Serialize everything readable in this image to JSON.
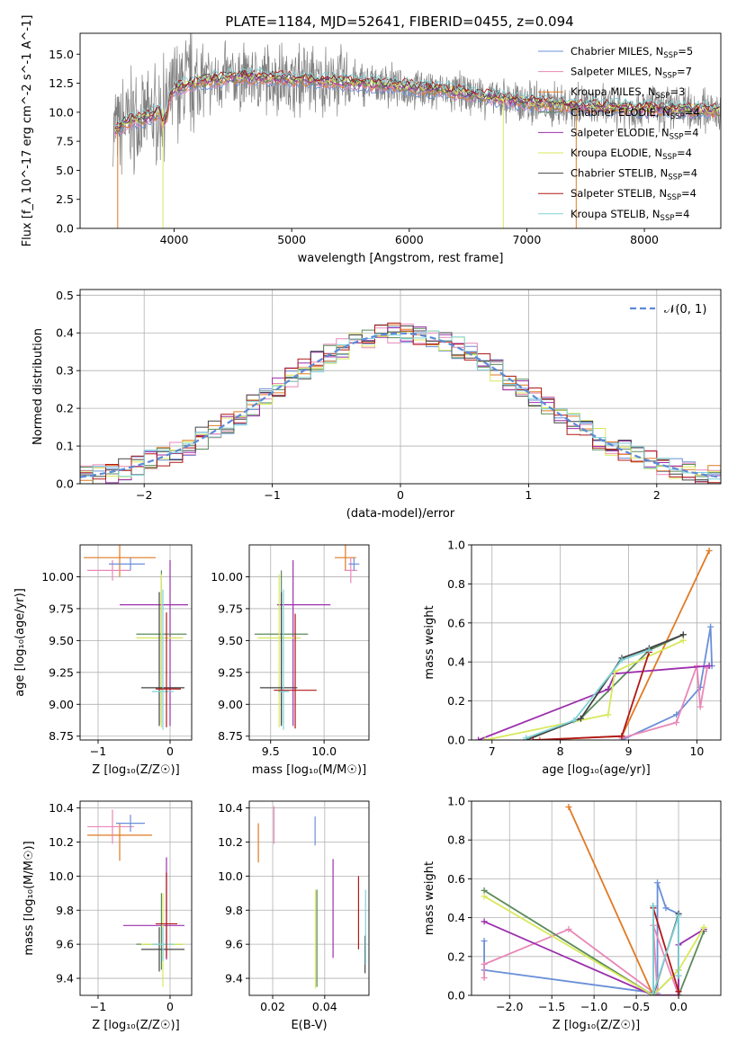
{
  "figure": {
    "title": "PLATE=1184, MJD=52641, FIBERID=0455, z=0.094"
  },
  "colors": {
    "Chabrier MILES": "#6a8fd8",
    "Salpeter MILES": "#e887b8",
    "Kroupa MILES": "#e07a22",
    "Chabrier ELODIE": "#5a8a5a",
    "Salpeter ELODIE": "#9c2fad",
    "Kroupa ELODIE": "#d8e85a",
    "Chabrier STELIB": "#444444",
    "Salpeter STELIB": "#b01818",
    "Kroupa STELIB": "#7fd3d8",
    "gaussian": "#5b8ad8"
  },
  "chart_data": [
    {
      "id": "spectrum",
      "type": "line",
      "xlabel": "wavelength [Angstrom, rest frame]",
      "ylabel": "Flux [f_λ 10^-17 erg cm^-2 s^-1 A^-1]",
      "xlim": [
        3200,
        8650
      ],
      "ylim": [
        0,
        16.8
      ],
      "xticks": [
        "4000",
        "5000",
        "6000",
        "7000",
        "8000"
      ],
      "yticks": [
        "0.0",
        "2.5",
        "5.0",
        "7.5",
        "10.0",
        "12.5",
        "15.0"
      ],
      "legend_position": "top-right",
      "legend": [
        {
          "name": "Chabrier MILES",
          "nssp": "5"
        },
        {
          "name": "Salpeter MILES",
          "nssp": "7"
        },
        {
          "name": "Kroupa MILES",
          "nssp": "3"
        },
        {
          "name": "Chabrier ELODIE",
          "nssp": "4"
        },
        {
          "name": "Salpeter ELODIE",
          "nssp": "4"
        },
        {
          "name": "Kroupa ELODIE",
          "nssp": "4"
        },
        {
          "name": "Chabrier STELIB",
          "nssp": "4"
        },
        {
          "name": "Salpeter STELIB",
          "nssp": "4"
        },
        {
          "name": "Kroupa STELIB",
          "nssp": "4"
        }
      ],
      "continuum": [
        [
          3500,
          8.5
        ],
        [
          3600,
          9.2
        ],
        [
          3800,
          9.6
        ],
        [
          3900,
          10.2
        ],
        [
          4000,
          12.0
        ],
        [
          4200,
          12.6
        ],
        [
          4500,
          13.0
        ],
        [
          4800,
          13.0
        ],
        [
          5000,
          12.8
        ],
        [
          5500,
          12.6
        ],
        [
          6000,
          12.2
        ],
        [
          6500,
          11.6
        ],
        [
          7000,
          10.8
        ],
        [
          7500,
          10.5
        ],
        [
          8000,
          10.3
        ],
        [
          8650,
          10.1
        ]
      ]
    },
    {
      "id": "residuals",
      "type": "line",
      "xlabel": "(data-model)/error",
      "ylabel": "Normed distribution",
      "xlim": [
        -2.5,
        2.5
      ],
      "ylim": [
        0,
        0.515
      ],
      "xticks": [
        "−2",
        "−1",
        "0",
        "1",
        "2"
      ],
      "yticks": [
        "0.0",
        "0.1",
        "0.2",
        "0.3",
        "0.4",
        "0.5"
      ],
      "legend_label": "𝒩(0, 1)",
      "legend_position": "top-right",
      "gaussian_mean": 0,
      "gaussian_sigma": 1,
      "bin_width": 0.1
    },
    {
      "id": "age_vs_Z",
      "type": "scatter",
      "xlabel": "Z [log₁₀(Z/Z☉)]",
      "ylabel": "age  [log₁₀(age/yr)]",
      "xlim": [
        -1.25,
        0.3
      ],
      "ylim": [
        8.72,
        10.25
      ],
      "xticks": [
        "−1",
        "0"
      ],
      "yticks": [
        "8.75",
        "9.00",
        "9.25",
        "9.50",
        "9.75",
        "10.00"
      ],
      "points": [
        {
          "series": "Kroupa MILES",
          "x": -0.7,
          "y": 10.15,
          "xerr": [
            0.5,
            0.5
          ],
          "yerr": [
            0.15,
            0.15
          ]
        },
        {
          "series": "Salpeter MILES",
          "x": -0.8,
          "y": 10.05,
          "xerr": [
            0.35,
            0.25
          ],
          "yerr": [
            0.08,
            0.08
          ]
        },
        {
          "series": "Chabrier MILES",
          "x": -0.55,
          "y": 10.1,
          "xerr": [
            0.3,
            0.2
          ],
          "yerr": [
            0.05,
            0.05
          ]
        },
        {
          "series": "Salpeter ELODIE",
          "x": 0.0,
          "y": 9.78,
          "xerr": [
            0.7,
            0.25
          ],
          "yerr": [
            0.95,
            0.35
          ]
        },
        {
          "series": "Chabrier ELODIE",
          "x": -0.12,
          "y": 9.55,
          "xerr": [
            0.35,
            0.35
          ],
          "yerr": [
            0.7,
            0.5
          ]
        },
        {
          "series": "Kroupa ELODIE",
          "x": -0.12,
          "y": 9.52,
          "xerr": [
            0.35,
            0.3
          ],
          "yerr": [
            0.7,
            0.5
          ]
        },
        {
          "series": "Chabrier STELIB",
          "x": -0.15,
          "y": 9.13,
          "xerr": [
            0.25,
            0.35
          ],
          "yerr": [
            0.3,
            0.75
          ]
        },
        {
          "series": "Kroupa STELIB",
          "x": -0.1,
          "y": 9.1,
          "xerr": [
            0.15,
            0.15
          ],
          "yerr": [
            0.3,
            0.8
          ]
        },
        {
          "series": "Salpeter STELIB",
          "x": -0.05,
          "y": 9.12,
          "xerr": [
            0.15,
            0.2
          ],
          "yerr": [
            0.3,
            0.6
          ]
        }
      ]
    },
    {
      "id": "age_vs_mass",
      "type": "scatter",
      "xlabel": "mass [log₁₀(M/M☉)]",
      "ylabel": "",
      "xlim": [
        9.3,
        10.42
      ],
      "ylim": [
        8.72,
        10.25
      ],
      "xticks": [
        "9.5",
        "10.0"
      ],
      "yticks": [
        "8.75",
        "9.00",
        "9.25",
        "9.50",
        "9.75",
        "10.00"
      ],
      "points": [
        {
          "series": "Kroupa MILES",
          "x": 10.2,
          "y": 10.15,
          "xerr": [
            0.1,
            0.1
          ],
          "yerr": [
            0.1,
            0.1
          ]
        },
        {
          "series": "Salpeter MILES",
          "x": 10.25,
          "y": 10.05,
          "xerr": [
            0.06,
            0.06
          ],
          "yerr": [
            0.1,
            0.1
          ]
        },
        {
          "series": "Chabrier MILES",
          "x": 10.28,
          "y": 10.1,
          "xerr": [
            0.05,
            0.05
          ],
          "yerr": [
            0.05,
            0.05
          ]
        },
        {
          "series": "Salpeter ELODIE",
          "x": 9.71,
          "y": 9.78,
          "xerr": [
            0.15,
            0.35
          ],
          "yerr": [
            0.95,
            0.35
          ]
        },
        {
          "series": "Chabrier ELODIE",
          "x": 9.6,
          "y": 9.55,
          "xerr": [
            0.25,
            0.25
          ],
          "yerr": [
            0.7,
            0.5
          ]
        },
        {
          "series": "Kroupa ELODIE",
          "x": 9.58,
          "y": 9.52,
          "xerr": [
            0.2,
            0.2
          ],
          "yerr": [
            0.7,
            0.5
          ]
        },
        {
          "series": "Chabrier STELIB",
          "x": 9.6,
          "y": 9.13,
          "xerr": [
            0.2,
            0.15
          ],
          "yerr": [
            0.3,
            0.75
          ]
        },
        {
          "series": "Kroupa STELIB",
          "x": 9.62,
          "y": 9.1,
          "xerr": [
            0.05,
            0.05
          ],
          "yerr": [
            0.3,
            0.8
          ]
        },
        {
          "series": "Salpeter STELIB",
          "x": 9.73,
          "y": 9.11,
          "xerr": [
            0.2,
            0.2
          ],
          "yerr": [
            0.3,
            0.6
          ]
        }
      ]
    },
    {
      "id": "weight_vs_age",
      "type": "line",
      "xlabel": "age  [log₁₀(age/yr)]",
      "ylabel": "mass weight",
      "xlim": [
        6.7,
        10.35
      ],
      "ylim": [
        0,
        1.0
      ],
      "xticks": [
        "7",
        "8",
        "9",
        "10"
      ],
      "yticks": [
        "0.0",
        "0.2",
        "0.4",
        "0.6",
        "0.8",
        "1.0"
      ],
      "series": [
        {
          "name": "Chabrier MILES",
          "x": [
            8.9,
            9.7,
            10.05,
            10.2,
            10.22
          ],
          "y": [
            0.0,
            0.13,
            0.27,
            0.58,
            0.38
          ]
        },
        {
          "name": "Salpeter MILES",
          "x": [
            8.9,
            9.7,
            10.0,
            10.05,
            10.15
          ],
          "y": [
            0.01,
            0.09,
            0.38,
            0.17,
            0.37
          ]
        },
        {
          "name": "Kroupa MILES",
          "x": [
            7.7,
            8.9,
            10.18
          ],
          "y": [
            0.0,
            0.02,
            0.97
          ]
        },
        {
          "name": "Chabrier ELODIE",
          "x": [
            7.5,
            8.3,
            9.3,
            9.8
          ],
          "y": [
            0.0,
            0.11,
            0.46,
            0.54
          ]
        },
        {
          "name": "Salpeter ELODIE",
          "x": [
            6.8,
            8.7,
            8.8,
            10.18
          ],
          "y": [
            0.0,
            0.26,
            0.34,
            0.38
          ]
        },
        {
          "name": "Kroupa ELODIE",
          "x": [
            6.9,
            8.7,
            8.8,
            9.8
          ],
          "y": [
            0.0,
            0.13,
            0.35,
            0.51
          ]
        },
        {
          "name": "Chabrier STELIB",
          "x": [
            7.5,
            8.3,
            8.9,
            9.3,
            9.8
          ],
          "y": [
            0.0,
            0.11,
            0.42,
            0.47,
            0.54
          ]
        },
        {
          "name": "Salpeter STELIB",
          "x": [
            7.6,
            8.9,
            9.3
          ],
          "y": [
            0.0,
            0.02,
            0.45
          ]
        },
        {
          "name": "Kroupa STELIB",
          "x": [
            7.5,
            8.2,
            8.9,
            9.3
          ],
          "y": [
            0.01,
            0.1,
            0.41,
            0.46
          ]
        }
      ]
    },
    {
      "id": "mass_vs_Z",
      "type": "scatter",
      "xlabel": "Z [log₁₀(Z/Z☉)]",
      "ylabel": "mass [log₁₀(M/M☉)]",
      "xlim": [
        -1.25,
        0.3
      ],
      "ylim": [
        9.3,
        10.44
      ],
      "xticks": [
        "−1",
        "0"
      ],
      "yticks": [
        "9.4",
        "9.6",
        "9.8",
        "10.0",
        "10.2",
        "10.4"
      ],
      "points": [
        {
          "series": "Kroupa MILES",
          "x": -0.7,
          "y": 10.24,
          "xerr": [
            0.45,
            0.45
          ],
          "yerr": [
            0.15,
            0.07
          ]
        },
        {
          "series": "Salpeter MILES",
          "x": -0.8,
          "y": 10.29,
          "xerr": [
            0.35,
            0.3
          ],
          "yerr": [
            0.1,
            0.1
          ]
        },
        {
          "series": "Chabrier MILES",
          "x": -0.55,
          "y": 10.31,
          "xerr": [
            0.2,
            0.2
          ],
          "yerr": [
            0.05,
            0.05
          ]
        },
        {
          "series": "Salpeter ELODIE",
          "x": -0.05,
          "y": 9.71,
          "xerr": [
            0.6,
            0.25
          ],
          "yerr": [
            0.2,
            0.4
          ]
        },
        {
          "series": "Chabrier ELODIE",
          "x": -0.12,
          "y": 9.6,
          "xerr": [
            0.35,
            0.3
          ],
          "yerr": [
            0.15,
            0.3
          ]
        },
        {
          "series": "Kroupa ELODIE",
          "x": -0.1,
          "y": 9.6,
          "xerr": [
            0.3,
            0.3
          ],
          "yerr": [
            0.25,
            0.3
          ]
        },
        {
          "series": "Chabrier STELIB",
          "x": -0.15,
          "y": 9.57,
          "xerr": [
            0.25,
            0.35
          ],
          "yerr": [
            0.13,
            0.13
          ]
        },
        {
          "series": "Kroupa STELIB",
          "x": -0.1,
          "y": 9.6,
          "xerr": [
            0.15,
            0.15
          ],
          "yerr": [
            0.1,
            0.1
          ]
        },
        {
          "series": "Salpeter STELIB",
          "x": -0.05,
          "y": 9.72,
          "xerr": [
            0.15,
            0.15
          ],
          "yerr": [
            0.2,
            0.3
          ]
        }
      ]
    },
    {
      "id": "mass_vs_ebv",
      "type": "scatter",
      "xlabel": "E(B-V)",
      "ylabel": "",
      "xlim": [
        0.011,
        0.057
      ],
      "ylim": [
        9.3,
        10.44
      ],
      "xticks": [
        "0.02",
        "0.04"
      ],
      "yticks": [
        "9.4",
        "9.6",
        "9.8",
        "10.0",
        "10.2",
        "10.4"
      ],
      "points": [
        {
          "series": "Kroupa MILES",
          "x": 0.0145,
          "y": 10.2,
          "yerr": [
            0.12,
            0.11
          ]
        },
        {
          "series": "Salpeter MILES",
          "x": 0.0205,
          "y": 10.29,
          "yerr": [
            0.1,
            0.12
          ]
        },
        {
          "series": "Chabrier MILES",
          "x": 0.0363,
          "y": 10.25,
          "yerr": [
            0.07,
            0.1
          ]
        },
        {
          "series": "Salpeter ELODIE",
          "x": 0.0432,
          "y": 9.81,
          "yerr": [
            0.29,
            0.29
          ]
        },
        {
          "series": "Chabrier ELODIE",
          "x": 0.037,
          "y": 9.63,
          "yerr": [
            0.28,
            0.29
          ]
        },
        {
          "series": "Kroupa ELODIE",
          "x": 0.0365,
          "y": 9.62,
          "yerr": [
            0.28,
            0.3
          ]
        },
        {
          "series": "Chabrier STELIB",
          "x": 0.0555,
          "y": 9.55,
          "yerr": [
            0.12,
            0.1
          ]
        },
        {
          "series": "Kroupa STELIB",
          "x": 0.0557,
          "y": 9.7,
          "yerr": [
            0.22,
            0.22
          ]
        },
        {
          "series": "Salpeter STELIB",
          "x": 0.053,
          "y": 9.79,
          "yerr": [
            0.22,
            0.21
          ]
        }
      ]
    },
    {
      "id": "weight_vs_Z",
      "type": "line",
      "xlabel": "Z [log₁₀(Z/Z☉)]",
      "ylabel": "mass weight",
      "xlim": [
        -2.45,
        0.5
      ],
      "ylim": [
        0,
        1.0
      ],
      "xticks": [
        "−2.0",
        "−1.5",
        "−1.0",
        "−0.5",
        "0.0"
      ],
      "yticks": [
        "0.0",
        "0.2",
        "0.4",
        "0.6",
        "0.8",
        "1.0"
      ],
      "series": [
        {
          "name": "Chabrier MILES",
          "x": [
            -2.3,
            -2.3,
            -0.25,
            -0.25,
            -0.15,
            0.0,
            0.0
          ],
          "y": [
            0.28,
            0.13,
            0.01,
            0.58,
            0.45,
            0.42,
            0.0
          ]
        },
        {
          "name": "Salpeter MILES",
          "x": [
            -2.3,
            -2.3,
            -1.3,
            -0.25,
            -0.3,
            0.0
          ],
          "y": [
            0.09,
            0.16,
            0.34,
            0.0,
            0.36,
            0.0
          ]
        },
        {
          "name": "Kroupa MILES",
          "x": [
            -1.3,
            -0.3,
            0.0
          ],
          "y": [
            0.97,
            0.0,
            0.0
          ]
        },
        {
          "name": "Chabrier ELODIE",
          "x": [
            -2.3,
            -0.3,
            0.0,
            0.0,
            0.3
          ],
          "y": [
            0.54,
            0.0,
            0.13,
            0.0,
            0.33
          ]
        },
        {
          "name": "Salpeter ELODIE",
          "x": [
            -2.3,
            -0.3,
            0.0,
            0.0,
            0.3
          ],
          "y": [
            0.38,
            0.0,
            0.0,
            0.26,
            0.34
          ]
        },
        {
          "name": "Kroupa ELODIE",
          "x": [
            -2.3,
            -0.3,
            0.0,
            0.3
          ],
          "y": [
            0.51,
            0.0,
            0.13,
            0.35
          ]
        },
        {
          "name": "Chabrier STELIB",
          "x": [
            -0.3,
            -0.3,
            0.0,
            0.0
          ],
          "y": [
            0.46,
            0.0,
            0.42,
            0.1
          ]
        },
        {
          "name": "Salpeter STELIB",
          "x": [
            -0.3,
            0.0
          ],
          "y": [
            0.45,
            0.02
          ]
        },
        {
          "name": "Kroupa STELIB",
          "x": [
            -0.3,
            -0.3,
            0.0,
            0.0
          ],
          "y": [
            0.46,
            0.01,
            0.41,
            0.1
          ]
        }
      ]
    }
  ]
}
